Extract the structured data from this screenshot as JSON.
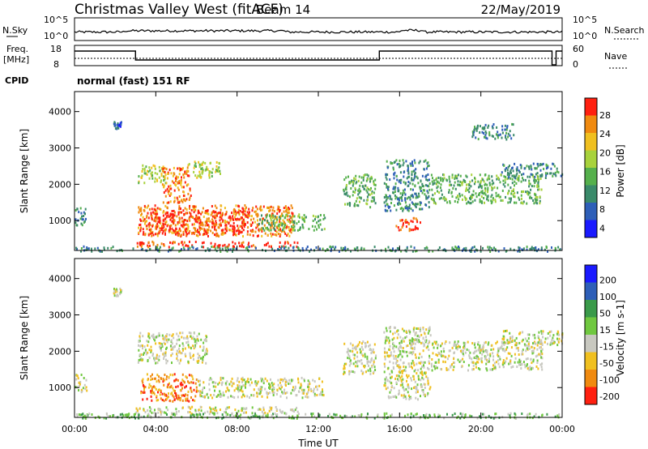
{
  "header": {
    "title": "Christmas Valley West (fitACF)",
    "beam": "Beam 14",
    "date": "22/May/2019"
  },
  "nsky_panel": {
    "left_label": "N.Sky",
    "left_ticks": [
      "10^5",
      "10^0"
    ],
    "right_label": "N.Search",
    "right_ticks": [
      "10^5",
      "10^0"
    ]
  },
  "freq_panel": {
    "left_label_1": "Freq.",
    "left_label_2": "[MHz]",
    "left_ticks": [
      "18",
      "8"
    ],
    "right_label": "Nave",
    "right_ticks": [
      "60",
      "0"
    ]
  },
  "cpid": {
    "label": "CPID",
    "value": "normal (fast) 151 RF"
  },
  "chart_data": [
    {
      "type": "heatmap",
      "id": "power",
      "ylabel": "Slant Range [km]",
      "ylim": [
        180,
        4550
      ],
      "yticks": [
        1000,
        2000,
        3000,
        4000
      ],
      "xlim": [
        0,
        24
      ],
      "colorbar_label": "Power [dB]",
      "colorbar_ticks": [
        "28",
        "24",
        "20",
        "16",
        "12",
        "8",
        "4"
      ],
      "colorbar_colors": [
        "#1a1aff",
        "#2e5fb8",
        "#3a8a6a",
        "#55b04c",
        "#a8d23c",
        "#f0c020",
        "#f08a10",
        "#ff2010"
      ],
      "regions": [
        {
          "t0": 0.0,
          "t1": 0.6,
          "r0": 900,
          "r1": 1400,
          "level": 2
        },
        {
          "t0": 1.9,
          "t1": 2.3,
          "r0": 3550,
          "r1": 3750,
          "level": 1
        },
        {
          "t0": 3.1,
          "t1": 4.5,
          "r0": 2050,
          "r1": 2550,
          "level": 4
        },
        {
          "t0": 4.3,
          "t1": 5.7,
          "r0": 1500,
          "r1": 2500,
          "level": 6
        },
        {
          "t0": 5.5,
          "t1": 7.2,
          "r0": 2200,
          "r1": 2650,
          "level": 4
        },
        {
          "t0": 3.1,
          "t1": 10.8,
          "r0": 600,
          "r1": 1450,
          "level": 6
        },
        {
          "t0": 3.5,
          "t1": 8.5,
          "r0": 650,
          "r1": 1300,
          "level": 7
        },
        {
          "t0": 9.0,
          "t1": 12.3,
          "r0": 750,
          "r1": 1200,
          "level": 3
        },
        {
          "t0": 3.0,
          "t1": 11.0,
          "r0": 300,
          "r1": 450,
          "level": 7
        },
        {
          "t0": 13.2,
          "t1": 14.8,
          "r0": 1400,
          "r1": 2300,
          "level": 3
        },
        {
          "t0": 15.2,
          "t1": 17.5,
          "r0": 1300,
          "r1": 2700,
          "level": 2
        },
        {
          "t0": 15.8,
          "t1": 17.0,
          "r0": 750,
          "r1": 1100,
          "level": 7
        },
        {
          "t0": 17.5,
          "t1": 23.0,
          "r0": 1500,
          "r1": 2300,
          "level": 3
        },
        {
          "t0": 21.0,
          "t1": 24.0,
          "r0": 2200,
          "r1": 2600,
          "level": 2
        },
        {
          "t0": 19.5,
          "t1": 21.6,
          "r0": 3250,
          "r1": 3700,
          "level": 2
        },
        {
          "t0": 0.0,
          "t1": 24.0,
          "r0": 180,
          "r1": 320,
          "level": 2
        }
      ]
    },
    {
      "type": "heatmap",
      "id": "velocity",
      "ylabel": "Slant Range [km]",
      "ylim": [
        180,
        4550
      ],
      "yticks": [
        1000,
        2000,
        3000,
        4000
      ],
      "xlim": [
        0,
        24
      ],
      "xticks": [
        "00:00",
        "04:00",
        "08:00",
        "12:00",
        "16:00",
        "20:00",
        "00:00"
      ],
      "xlabel": "Time UT",
      "colorbar_label": "Velocity [m s-1]",
      "colorbar_ticks": [
        "200",
        "100",
        "50",
        "15",
        "-15",
        "-50",
        "-100",
        "-200"
      ],
      "colorbar_colors": [
        "#ff2010",
        "#f08a10",
        "#f0c020",
        "#c8c8c0",
        "#70c840",
        "#3a9a4a",
        "#2e5fb8",
        "#1a1aff"
      ],
      "regions": [
        {
          "t0": 0.0,
          "t1": 0.6,
          "r0": 900,
          "r1": 1400,
          "level": 3
        },
        {
          "t0": 1.9,
          "t1": 2.3,
          "r0": 3550,
          "r1": 3750,
          "level": 3
        },
        {
          "t0": 3.1,
          "t1": 6.5,
          "r0": 1700,
          "r1": 2550,
          "level": 3
        },
        {
          "t0": 3.2,
          "t1": 6.0,
          "r0": 650,
          "r1": 1400,
          "level": 1
        },
        {
          "t0": 6.0,
          "t1": 12.3,
          "r0": 750,
          "r1": 1300,
          "level": 3
        },
        {
          "t0": 3.0,
          "t1": 11.0,
          "r0": 300,
          "r1": 500,
          "level": 3
        },
        {
          "t0": 13.2,
          "t1": 14.8,
          "r0": 1400,
          "r1": 2300,
          "level": 3
        },
        {
          "t0": 15.2,
          "t1": 17.5,
          "r0": 700,
          "r1": 2700,
          "level": 3
        },
        {
          "t0": 17.5,
          "t1": 23.0,
          "r0": 1500,
          "r1": 2300,
          "level": 3
        },
        {
          "t0": 21.0,
          "t1": 24.0,
          "r0": 2200,
          "r1": 2600,
          "level": 3
        },
        {
          "t0": 0.0,
          "t1": 24.0,
          "r0": 180,
          "r1": 320,
          "level": 4
        }
      ]
    }
  ]
}
